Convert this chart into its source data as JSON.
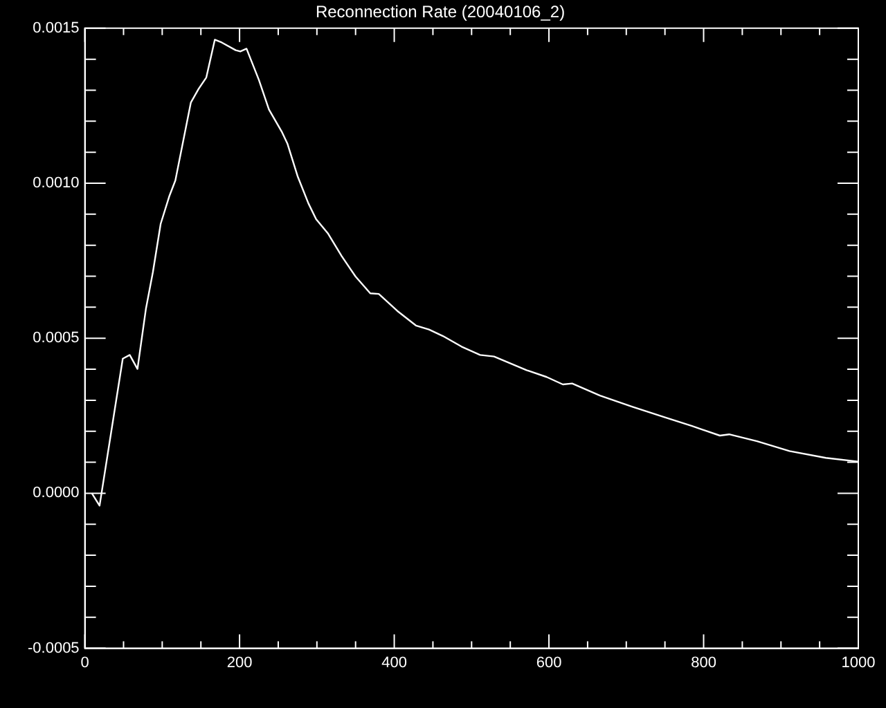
{
  "chart_data": {
    "type": "line",
    "title": "Reconnection Rate (20040106_2)",
    "legend": false,
    "grid": false,
    "marker": "none",
    "line_style": "solid",
    "xlim": [
      0,
      1000
    ],
    "ylim": [
      -0.0005,
      0.0015
    ],
    "xticks": [
      0,
      {
        "value": 50,
        "label": null
      },
      {
        "value": 100,
        "label": null
      },
      {
        "value": 150,
        "label": null
      },
      200,
      {
        "value": 250,
        "label": null
      },
      {
        "value": 300,
        "label": null
      },
      {
        "value": 350,
        "label": null
      },
      400,
      {
        "value": 450,
        "label": null
      },
      {
        "value": 500,
        "label": null
      },
      {
        "value": 550,
        "label": null
      },
      600,
      {
        "value": 650,
        "label": null
      },
      {
        "value": 700,
        "label": null
      },
      {
        "value": 750,
        "label": null
      },
      800,
      {
        "value": 850,
        "label": null
      },
      {
        "value": 900,
        "label": null
      },
      {
        "value": 950,
        "label": null
      },
      1000
    ],
    "yticks": [
      {
        "value": -0.0005,
        "label": "-0.0005"
      },
      {
        "value": -0.0004,
        "label": null
      },
      {
        "value": -0.0003,
        "label": null
      },
      {
        "value": -0.0002,
        "label": null
      },
      {
        "value": -0.0001,
        "label": null
      },
      {
        "value": 0,
        "label": "0.0000"
      },
      {
        "value": 0.0001,
        "label": null
      },
      {
        "value": 0.0002,
        "label": null
      },
      {
        "value": 0.0003,
        "label": null
      },
      {
        "value": 0.0004,
        "label": null
      },
      {
        "value": 0.0005,
        "label": "0.0005"
      },
      {
        "value": 0.0006,
        "label": null
      },
      {
        "value": 0.0007,
        "label": null
      },
      {
        "value": 0.0008,
        "label": null
      },
      {
        "value": 0.0009,
        "label": null
      },
      {
        "value": 0.001,
        "label": "0.0010"
      },
      {
        "value": 0.0011,
        "label": null
      },
      {
        "value": 0.0012,
        "label": null
      },
      {
        "value": 0.0013,
        "label": null
      },
      {
        "value": 0.0014,
        "label": null
      },
      {
        "value": 0.0015,
        "label": "0.0015"
      }
    ],
    "x": [
      9,
      19,
      49,
      58,
      68,
      79,
      88,
      98,
      109,
      117,
      137,
      147,
      157,
      168,
      177,
      195,
      201,
      209,
      225,
      238,
      255,
      262,
      275,
      289,
      299,
      314,
      332,
      350,
      369,
      380,
      404,
      428,
      445,
      463,
      487,
      511,
      529,
      571,
      597,
      618,
      630,
      666,
      708,
      750,
      785,
      821,
      833,
      869,
      911,
      958,
      1000
    ],
    "series": [
      {
        "color": "#ffffff",
        "values": [
          0,
          -4e-05,
          0.000434,
          0.000446,
          0.000401,
          0.000596,
          0.000714,
          0.000869,
          0.000957,
          0.001009,
          0.00126,
          0.001304,
          0.001341,
          0.001463,
          0.001454,
          0.001429,
          0.001425,
          0.001434,
          0.001333,
          0.001238,
          0.001164,
          0.001127,
          0.001023,
          0.000935,
          0.000884,
          0.000839,
          0.000765,
          0.000699,
          0.000645,
          0.000643,
          0.000588,
          0.000541,
          0.000528,
          0.000507,
          0.000473,
          0.000446,
          0.000441,
          0.000397,
          0.000375,
          0.000351,
          0.000354,
          0.000315,
          0.000279,
          0.000245,
          0.000217,
          0.000186,
          0.00019,
          0.000168,
          0.000136,
          0.000114,
          0.000102
        ]
      }
    ]
  }
}
